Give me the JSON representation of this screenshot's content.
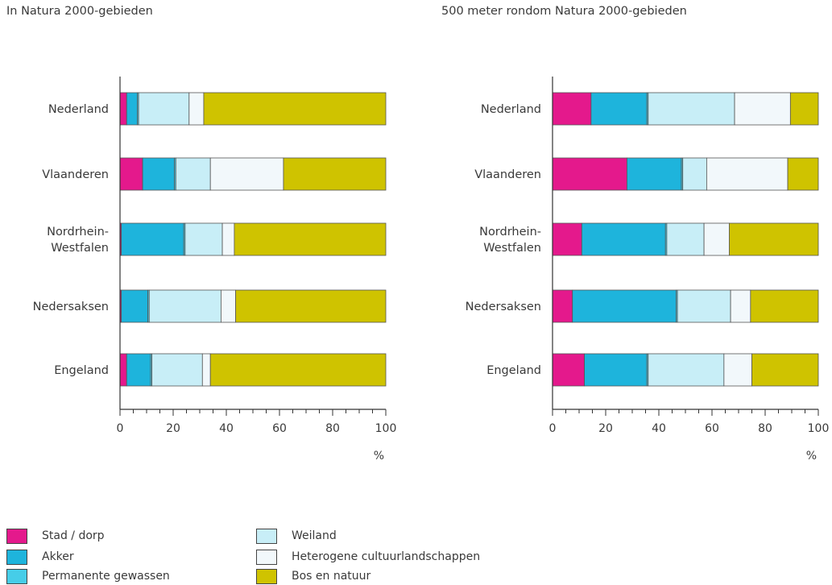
{
  "chart_data": [
    {
      "type": "bar",
      "orientation": "horizontal",
      "stacked": true,
      "title": "In Natura 2000-gebieden",
      "categories": [
        "Nederland",
        "Vlaanderen",
        "Nordrhein-Westfalen",
        "Nedersaksen",
        "Engeland"
      ],
      "category_lines": [
        [
          "Nederland"
        ],
        [
          "Vlaanderen"
        ],
        [
          "Nordrhein-",
          "Westfalen"
        ],
        [
          "Nedersaksen"
        ],
        [
          "Engeland"
        ]
      ],
      "series": [
        {
          "name": "Stad / dorp",
          "values": [
            2.5,
            8.5,
            0.5,
            0.5,
            2.5
          ]
        },
        {
          "name": "Akker",
          "values": [
            4,
            12,
            23.5,
            10,
            9
          ]
        },
        {
          "name": "Permanente gewassen",
          "values": [
            0.5,
            0.5,
            0.5,
            0.5,
            0.5
          ]
        },
        {
          "name": "Weiland",
          "values": [
            19,
            13,
            14,
            27,
            19
          ]
        },
        {
          "name": "Heterogene cultuurlandschappen",
          "values": [
            5.5,
            27.5,
            4.5,
            5.5,
            3
          ]
        },
        {
          "name": "Bos en natuur",
          "values": [
            68.5,
            38.5,
            57,
            56.5,
            66
          ]
        }
      ],
      "xlim": [
        0,
        100
      ],
      "xticks": [
        0,
        20,
        40,
        60,
        80,
        100
      ],
      "xunit": "%"
    },
    {
      "type": "bar",
      "orientation": "horizontal",
      "stacked": true,
      "title": "500 meter rondom Natura 2000-gebieden",
      "categories": [
        "Nederland",
        "Vlaanderen",
        "Nordrhein-Westfalen",
        "Nedersaksen",
        "Engeland"
      ],
      "category_lines": [
        [
          "Nederland"
        ],
        [
          "Vlaanderen"
        ],
        [
          "Nordrhein-",
          "Westfalen"
        ],
        [
          "Nedersaksen"
        ],
        [
          "Engeland"
        ]
      ],
      "series": [
        {
          "name": "Stad / dorp",
          "values": [
            14.5,
            28,
            11,
            7.5,
            12
          ]
        },
        {
          "name": "Akker",
          "values": [
            21,
            20.5,
            31.5,
            39,
            23.5
          ]
        },
        {
          "name": "Permanente gewassen",
          "values": [
            0.5,
            0.5,
            0.5,
            0.5,
            0.5
          ]
        },
        {
          "name": "Weiland",
          "values": [
            32.5,
            9,
            14,
            20,
            28.5
          ]
        },
        {
          "name": "Heterogene cultuurlandschappen",
          "values": [
            21,
            30.5,
            9.5,
            7.5,
            10.5
          ]
        },
        {
          "name": "Bos en natuur",
          "values": [
            10.5,
            11.5,
            33.5,
            25.5,
            25
          ]
        }
      ],
      "xlim": [
        0,
        100
      ],
      "xticks": [
        0,
        20,
        40,
        60,
        80,
        100
      ],
      "xunit": "%"
    }
  ],
  "colors": {
    "Stad / dorp": "#e4198c",
    "Akker": "#1eb4dc",
    "Permanente gewassen": "#46cde8",
    "Weiland": "#c8eef7",
    "Heterogene cultuurlandschappen": "#f2f8fb",
    "Bos en natuur": "#cfc300"
  },
  "legend": [
    {
      "label": "Stad / dorp"
    },
    {
      "label": "Akker"
    },
    {
      "label": "Permanente gewassen"
    },
    {
      "label": "Weiland"
    },
    {
      "label": "Heterogene cultuurlandschappen"
    },
    {
      "label": "Bos en natuur"
    }
  ]
}
